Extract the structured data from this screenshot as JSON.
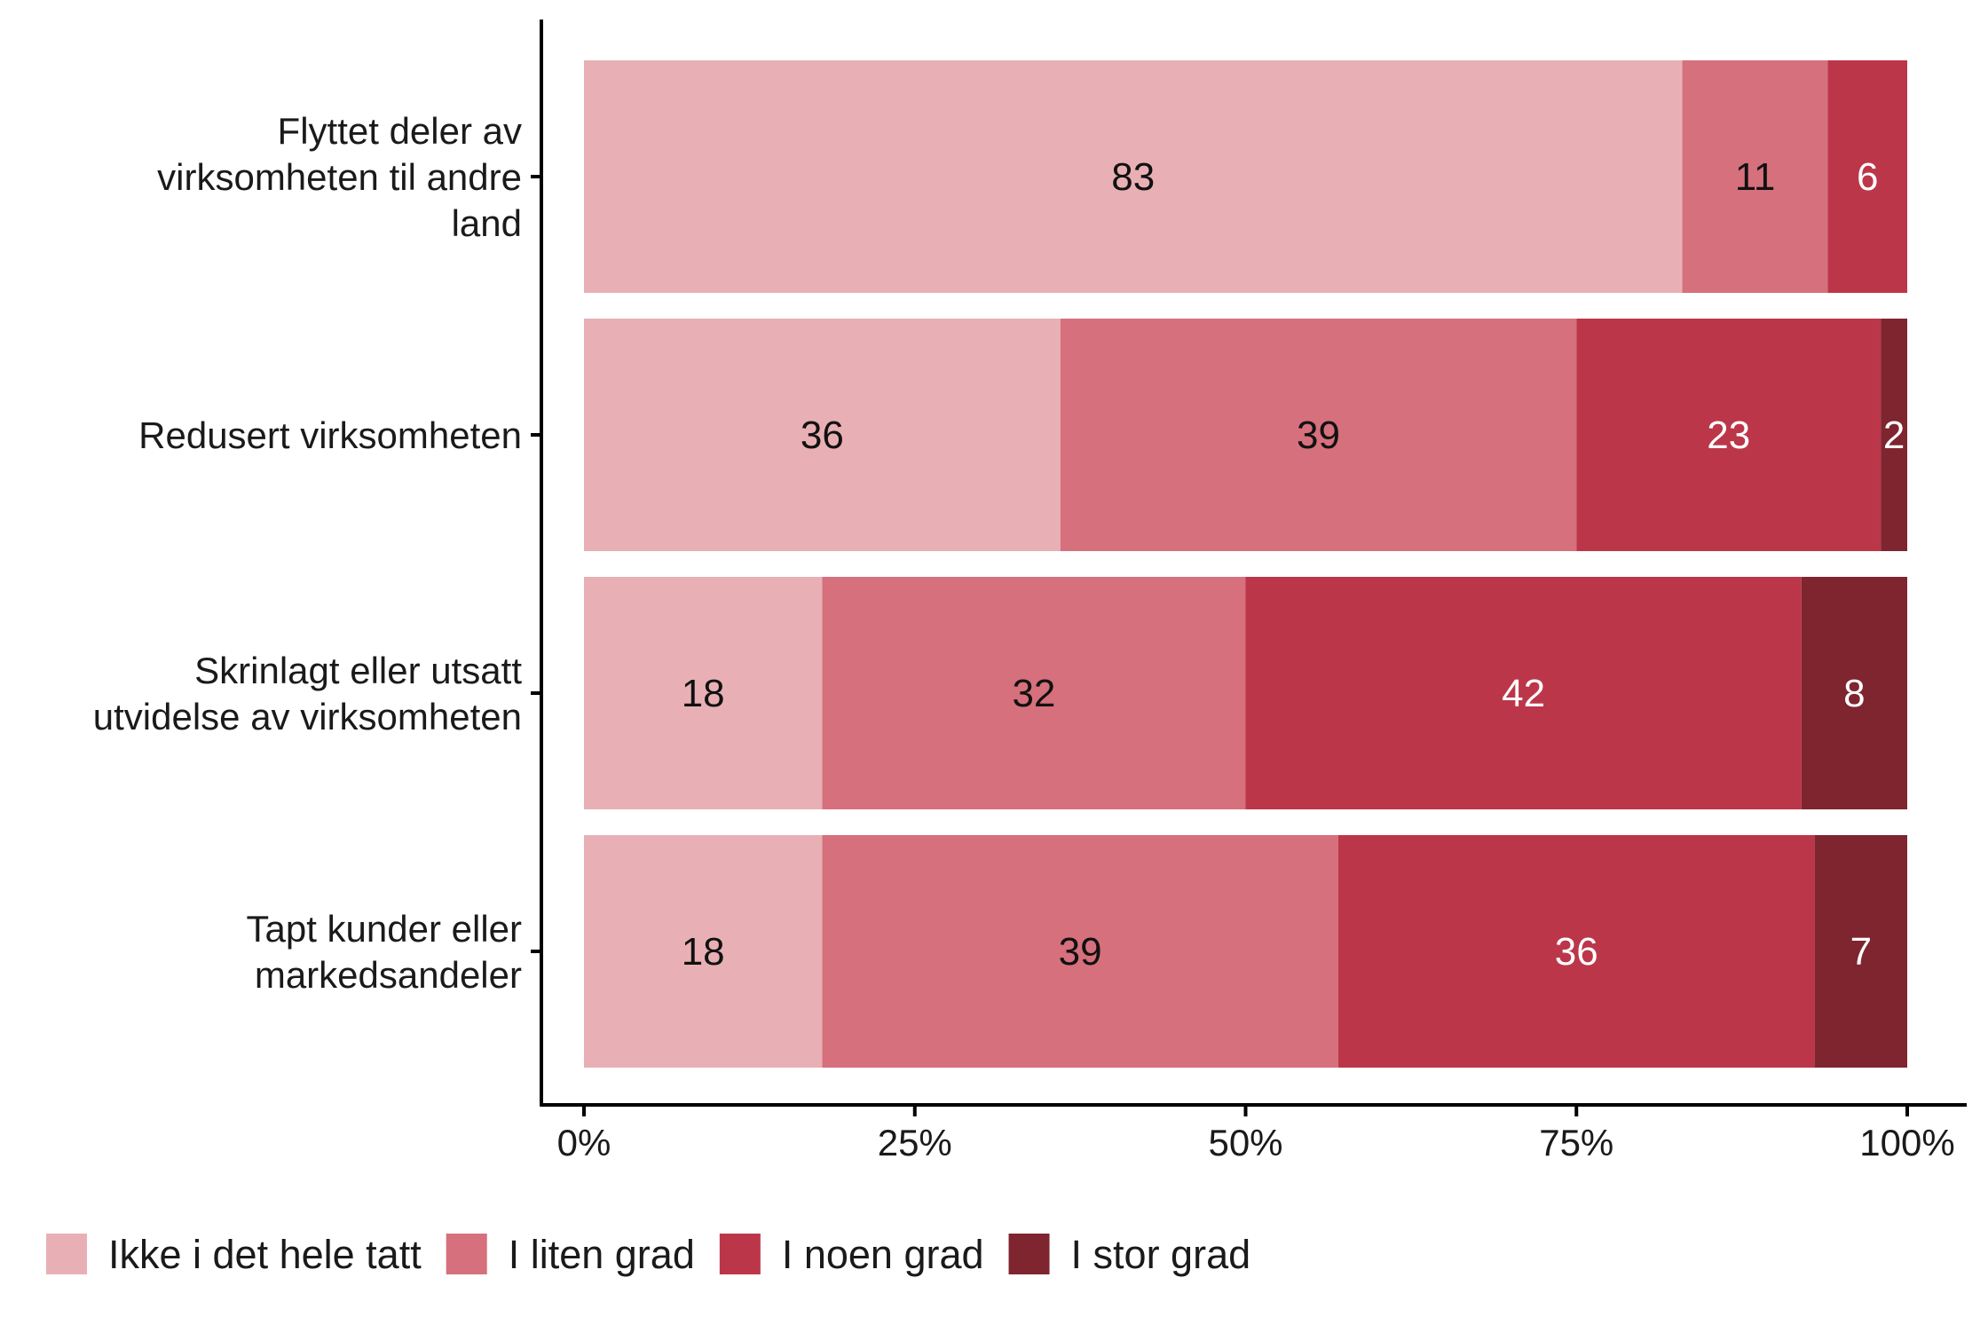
{
  "chart_data": {
    "type": "bar",
    "orientation": "horizontal",
    "stacked": true,
    "categories": [
      [
        "Flyttet deler av",
        "virksomheten til andre",
        "land"
      ],
      [
        "Redusert virksomheten"
      ],
      [
        "Skrinlagt eller utsatt",
        "utvidelse av virksomheten"
      ],
      [
        "Tapt kunder eller",
        "markedsandeler"
      ]
    ],
    "series": [
      {
        "name": "Ikke i det hele tatt",
        "color": "#e8b0b5",
        "label_color": "#111111",
        "values": [
          83,
          36,
          18,
          18
        ],
        "labels": [
          "83",
          "36",
          "18",
          "18"
        ]
      },
      {
        "name": "I liten grad",
        "color": "#d6707c",
        "label_color": "#111111",
        "values": [
          11,
          39,
          32,
          39
        ],
        "labels": [
          "11",
          "39",
          "32",
          "39"
        ]
      },
      {
        "name": "I noen grad",
        "color": "#bc3649",
        "label_color": "#ffffff",
        "values": [
          6,
          23,
          42,
          36
        ],
        "labels": [
          "6",
          "23",
          "42",
          "36"
        ]
      },
      {
        "name": "I stor grad",
        "color": "#7e2530",
        "label_color": "#ffffff",
        "values": [
          0,
          2,
          8,
          7
        ],
        "labels": [
          "",
          "2",
          "8",
          "7"
        ]
      }
    ],
    "xlim": [
      0,
      100
    ],
    "x_ticks": [
      0,
      25,
      50,
      75,
      100
    ],
    "x_tick_labels": [
      "0%",
      "25%",
      "50%",
      "75%",
      "100%"
    ],
    "grid": false,
    "legend_position": "bottom-left"
  }
}
